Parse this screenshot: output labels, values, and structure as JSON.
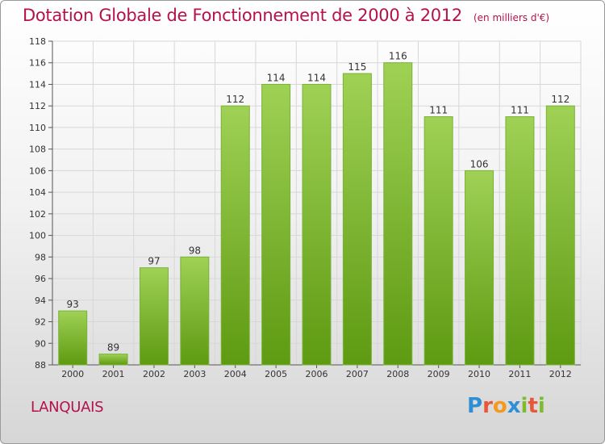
{
  "title": "Dotation Globale de Fonctionnement de 2000 à 2012",
  "subtitle": "(en milliers d'€)",
  "commune": "LANQUAIS",
  "logo_text": "Proxiti",
  "colors": {
    "bar_light": "#9fd155",
    "bar_dark": "#5e9a12",
    "title": "#b4114d",
    "grid": "#d7d7d7"
  },
  "chart_data": {
    "type": "bar",
    "title": "Dotation Globale de Fonctionnement de 2000 à 2012",
    "subtitle": "(en milliers d'€)",
    "categories": [
      "2000",
      "2001",
      "2002",
      "2003",
      "2004",
      "2005",
      "2006",
      "2007",
      "2008",
      "2009",
      "2010",
      "2011",
      "2012"
    ],
    "values": [
      93,
      89,
      97,
      98,
      112,
      114,
      114,
      115,
      116,
      111,
      106,
      111,
      112
    ],
    "ylim": [
      88,
      118
    ],
    "yticks": [
      88,
      90,
      92,
      94,
      96,
      98,
      100,
      102,
      104,
      106,
      108,
      110,
      112,
      114,
      116,
      118
    ],
    "grid": true,
    "data_labels": true,
    "xlabel": "",
    "ylabel": ""
  }
}
